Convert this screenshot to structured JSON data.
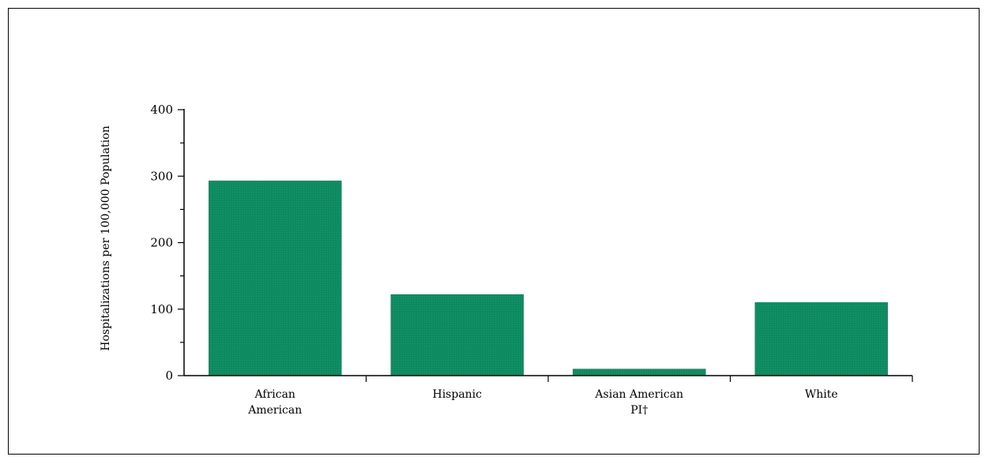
{
  "chart_data": {
    "type": "bar",
    "title": "",
    "xlabel": "",
    "ylabel": "Hospitalizations per 100,000 Population",
    "categories": [
      [
        "African",
        "American"
      ],
      [
        "Hispanic"
      ],
      [
        "Asian American",
        "PI†"
      ],
      [
        "White"
      ]
    ],
    "values": [
      293,
      122,
      10,
      110
    ],
    "ylim": [
      0,
      400
    ],
    "yticks": [
      0,
      100,
      200,
      300,
      400
    ],
    "y_minor_step": 50,
    "grid": false,
    "legend": "none",
    "bar_color": "#0e8a60"
  }
}
